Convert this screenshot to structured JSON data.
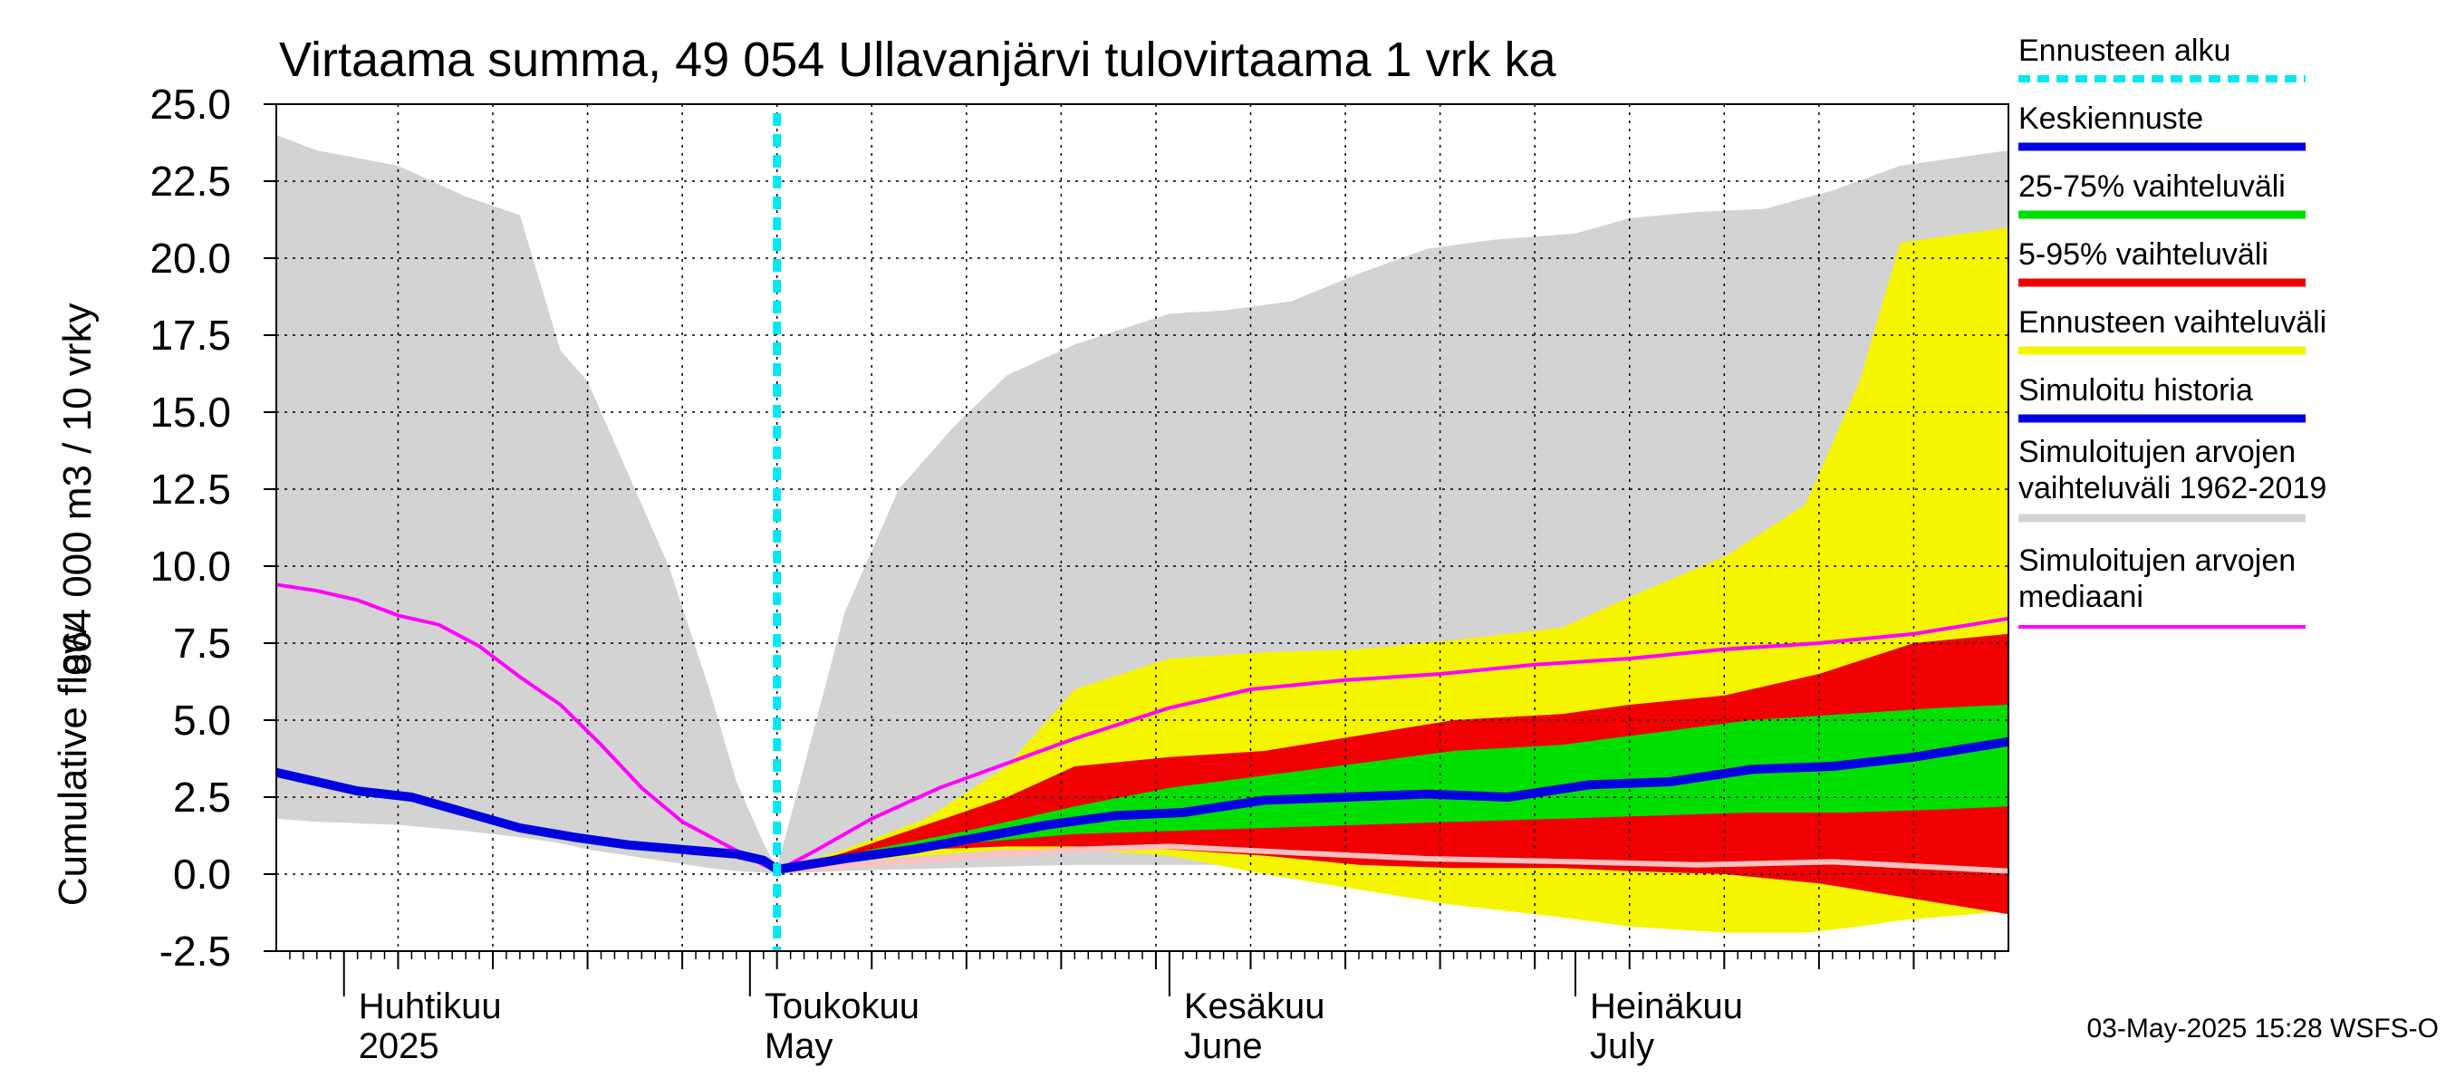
{
  "chart_data": {
    "type": "area",
    "title": "Virtaama summa, 49 054 Ullavanjärvi tulovirtaama 1 vrk ka",
    "ylabel_lines": [
      "864 000 m3 / 10 vrky",
      "Cumulative flow"
    ],
    "ylim": [
      -2.5,
      25.0
    ],
    "yticks": [
      "25.0",
      "22.5",
      "20.0",
      "17.5",
      "15.0",
      "12.5",
      "10.0",
      "7.5",
      "5.0",
      "2.5",
      "0.0",
      "-2.5"
    ],
    "x_start": "2025-03-27",
    "x_end": "2025-08-02",
    "forecast_start": "2025-05-03",
    "month_labels": [
      {
        "date": "2025-04-01",
        "line1": "Huhtikuu",
        "line2": "2025"
      },
      {
        "date": "2025-05-01",
        "line1": "Toukokuu",
        "line2": "May"
      },
      {
        "date": "2025-06-01",
        "line1": "Kesäkuu",
        "line2": "June"
      },
      {
        "date": "2025-07-01",
        "line1": "Heinäkuu",
        "line2": "July"
      }
    ],
    "grid": true,
    "legend_position": "right",
    "legend": [
      {
        "label": "Ennusteen alku",
        "color": "#00e8f0",
        "style": "dotted"
      },
      {
        "label": "Keskiennuste",
        "color": "#0000e0",
        "style": "solid"
      },
      {
        "label": "25-75% vaihteluväli",
        "color": "#00e000",
        "style": "solid"
      },
      {
        "label": "5-95% vaihteluväli",
        "color": "#f00000",
        "style": "solid"
      },
      {
        "label": "Ennusteen vaihteluväli",
        "color": "#f5f500",
        "style": "solid"
      },
      {
        "label": "Simuloitu historia",
        "color": "#0000e0",
        "style": "solid"
      },
      {
        "label": "Simuloitujen arvojen vaihteluväli 1962-2019",
        "color": "#d3d3d3",
        "style": "solid"
      },
      {
        "label": "Simuloitujen arvojen mediaani",
        "color": "#ff00ff",
        "style": "solid"
      }
    ],
    "series": {
      "hist_range": {
        "color": "#d3d3d3",
        "x": [
          "2025-03-27",
          "2025-03-30",
          "2025-04-05",
          "2025-04-10",
          "2025-04-14",
          "2025-04-17",
          "2025-04-19",
          "2025-04-22",
          "2025-04-25",
          "2025-04-28",
          "2025-04-30",
          "2025-05-02",
          "2025-05-03",
          "2025-05-05",
          "2025-05-08",
          "2025-05-12",
          "2025-05-16",
          "2025-05-20",
          "2025-05-25",
          "2025-06-01",
          "2025-06-05",
          "2025-06-10",
          "2025-06-15",
          "2025-06-20",
          "2025-06-25",
          "2025-07-01",
          "2025-07-05",
          "2025-07-10",
          "2025-07-15",
          "2025-07-20",
          "2025-07-25",
          "2025-08-02"
        ],
        "upper": [
          24.0,
          23.5,
          23.0,
          22.0,
          21.4,
          17.0,
          16.0,
          13.0,
          10.0,
          6.0,
          3.0,
          1.0,
          0.2,
          3.5,
          8.5,
          12.5,
          14.5,
          16.2,
          17.2,
          18.2,
          18.3,
          18.6,
          19.5,
          20.3,
          20.6,
          20.8,
          21.3,
          21.5,
          21.6,
          22.2,
          23.0,
          23.5
        ],
        "lower": [
          1.8,
          1.7,
          1.6,
          1.4,
          1.2,
          1.0,
          0.8,
          0.6,
          0.4,
          0.2,
          0.1,
          0.05,
          0.0,
          0.05,
          0.1,
          0.15,
          0.2,
          0.25,
          0.3,
          0.3,
          0.3,
          0.3,
          0.3,
          0.3,
          0.3,
          0.3,
          0.3,
          0.3,
          0.3,
          0.3,
          0.3,
          0.3
        ]
      },
      "hist_median": {
        "color": "#ff00ff",
        "x": [
          "2025-03-27",
          "2025-03-30",
          "2025-04-02",
          "2025-04-05",
          "2025-04-08",
          "2025-04-11",
          "2025-04-14",
          "2025-04-17",
          "2025-04-20",
          "2025-04-23",
          "2025-04-26",
          "2025-04-29",
          "2025-05-02",
          "2025-05-03",
          "2025-05-06",
          "2025-05-10",
          "2025-05-15",
          "2025-05-20",
          "2025-05-25",
          "2025-06-01",
          "2025-06-07",
          "2025-06-14",
          "2025-06-21",
          "2025-06-28",
          "2025-07-05",
          "2025-07-12",
          "2025-07-19",
          "2025-07-26",
          "2025-08-02"
        ],
        "values": [
          9.4,
          9.2,
          8.9,
          8.4,
          8.1,
          7.4,
          6.4,
          5.5,
          4.2,
          2.8,
          1.7,
          1.0,
          0.3,
          0.1,
          0.8,
          1.8,
          2.8,
          3.6,
          4.4,
          5.4,
          6.0,
          6.3,
          6.5,
          6.8,
          7.0,
          7.3,
          7.5,
          7.8,
          8.3
        ]
      },
      "hist_simulated": {
        "color": "#0000e0",
        "x": [
          "2025-03-27",
          "2025-03-30",
          "2025-04-02",
          "2025-04-06",
          "2025-04-10",
          "2025-04-14",
          "2025-04-18",
          "2025-04-22",
          "2025-04-26",
          "2025-04-30",
          "2025-05-02",
          "2025-05-03"
        ],
        "values": [
          3.3,
          3.0,
          2.7,
          2.5,
          2.0,
          1.5,
          1.2,
          0.95,
          0.8,
          0.65,
          0.45,
          0.15
        ]
      },
      "forecast_range": {
        "color": "#f5f500",
        "x": [
          "2025-05-03",
          "2025-05-08",
          "2025-05-14",
          "2025-05-20",
          "2025-05-25",
          "2025-06-01",
          "2025-06-08",
          "2025-06-15",
          "2025-06-22",
          "2025-06-30",
          "2025-07-05",
          "2025-07-12",
          "2025-07-18",
          "2025-07-20",
          "2025-07-22",
          "2025-07-25",
          "2025-08-02"
        ],
        "upper": [
          0.1,
          0.8,
          1.8,
          3.5,
          6.0,
          7.0,
          7.2,
          7.3,
          7.6,
          8.0,
          9.0,
          10.3,
          12.0,
          14.0,
          16.0,
          20.5,
          21.0
        ],
        "lower": [
          0.1,
          0.4,
          0.6,
          0.8,
          0.8,
          0.6,
          0.0,
          -0.5,
          -1.0,
          -1.4,
          -1.7,
          -1.9,
          -1.9,
          -1.8,
          -1.7,
          -1.5,
          -1.2
        ]
      },
      "band_5_95": {
        "color": "#f00000",
        "x": [
          "2025-05-03",
          "2025-05-08",
          "2025-05-14",
          "2025-05-20",
          "2025-05-25",
          "2025-06-01",
          "2025-06-08",
          "2025-06-15",
          "2025-06-22",
          "2025-06-30",
          "2025-07-05",
          "2025-07-12",
          "2025-07-19",
          "2025-07-26",
          "2025-08-02"
        ],
        "upper": [
          0.1,
          0.7,
          1.6,
          2.5,
          3.5,
          3.8,
          4.0,
          4.5,
          5.0,
          5.2,
          5.5,
          5.8,
          6.5,
          7.5,
          7.8
        ],
        "lower": [
          0.1,
          0.5,
          0.8,
          0.9,
          0.9,
          0.8,
          0.6,
          0.3,
          0.2,
          0.2,
          0.1,
          0.0,
          -0.3,
          -0.8,
          -1.3
        ]
      },
      "band_25_75": {
        "color": "#00e000",
        "x": [
          "2025-05-03",
          "2025-05-10",
          "2025-05-17",
          "2025-05-25",
          "2025-06-01",
          "2025-06-08",
          "2025-06-15",
          "2025-06-22",
          "2025-06-30",
          "2025-07-07",
          "2025-07-14",
          "2025-07-21",
          "2025-07-28",
          "2025-08-02"
        ],
        "upper": [
          0.1,
          0.8,
          1.4,
          2.2,
          2.8,
          3.2,
          3.6,
          4.0,
          4.2,
          4.6,
          5.0,
          5.2,
          5.4,
          5.5
        ],
        "lower": [
          0.1,
          0.6,
          1.0,
          1.3,
          1.4,
          1.5,
          1.6,
          1.7,
          1.8,
          1.9,
          2.0,
          2.0,
          2.1,
          2.2
        ]
      },
      "forecast_mean": {
        "color": "#0000e0",
        "x": [
          "2025-05-03",
          "2025-05-08",
          "2025-05-13",
          "2025-05-18",
          "2025-05-23",
          "2025-05-28",
          "2025-06-02",
          "2025-06-08",
          "2025-06-14",
          "2025-06-20",
          "2025-06-26",
          "2025-07-02",
          "2025-07-08",
          "2025-07-14",
          "2025-07-20",
          "2025-07-26",
          "2025-08-02"
        ],
        "values": [
          0.15,
          0.5,
          0.8,
          1.2,
          1.6,
          1.9,
          2.0,
          2.4,
          2.5,
          2.6,
          2.5,
          2.9,
          3.0,
          3.4,
          3.5,
          3.8,
          4.3
        ]
      },
      "forecast_low_line": {
        "color": "#ffc0c0",
        "x": [
          "2025-05-03",
          "2025-05-15",
          "2025-05-25",
          "2025-06-01",
          "2025-06-10",
          "2025-06-20",
          "2025-07-01",
          "2025-07-10",
          "2025-07-20",
          "2025-08-02"
        ],
        "values": [
          0.1,
          0.5,
          0.8,
          0.9,
          0.7,
          0.5,
          0.4,
          0.3,
          0.4,
          0.1
        ]
      }
    },
    "timestamp": "03-May-2025 15:28 WSFS-O"
  }
}
